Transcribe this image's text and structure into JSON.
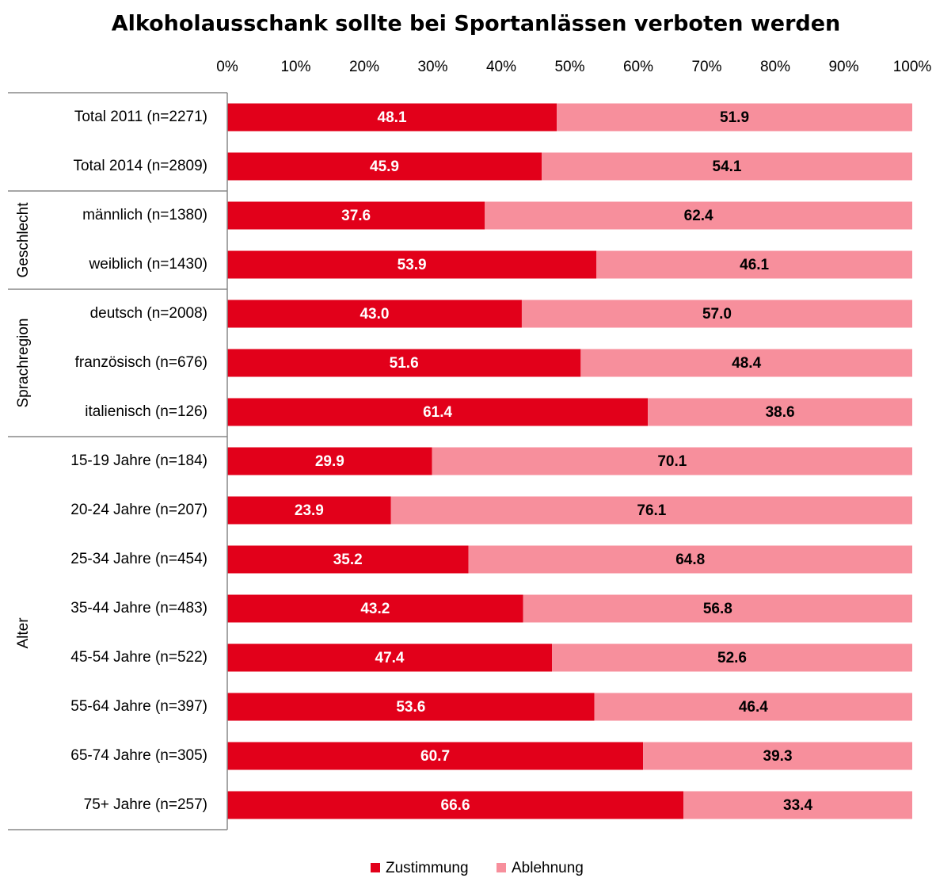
{
  "chart_data": {
    "type": "stacked_bar_horizontal",
    "title": "Alkoholausschank sollte bei Sportanlässen verboten werden",
    "categories": [
      "Total 2011 (n=2271)",
      "Total 2014 (n=2809)",
      "männlich (n=1380)",
      "weiblich (n=1430)",
      "deutsch (n=2008)",
      "französisch (n=676)",
      "italienisch (n=126)",
      "15-19 Jahre (n=184)",
      "20-24  Jahre (n=207)",
      "25-34  Jahre (n=454)",
      "35-44  Jahre (n=483)",
      "45-54  Jahre (n=522)",
      "55-64  Jahre (n=397)",
      "65-74  Jahre (n=305)",
      "75+ Jahre (n=257)"
    ],
    "groups": [
      {
        "name": "Geschlecht",
        "first": 2,
        "last": 3
      },
      {
        "name": "Sprachregion",
        "first": 4,
        "last": 6
      },
      {
        "name": "Alter",
        "first": 7,
        "last": 14
      }
    ],
    "series": [
      {
        "name": "Zustimmung",
        "color": "#e2001a",
        "label_color": "#ffffff",
        "values": [
          48.1,
          45.9,
          37.6,
          53.9,
          43,
          51.6,
          61.4,
          29.9,
          23.9,
          35.2,
          43.2,
          47.4,
          53.6,
          60.7,
          66.6
        ],
        "value_labels": [
          "48.1",
          "45.9",
          "37.6",
          "53.9",
          "43.0",
          "51.6",
          "61.4",
          "29.9",
          "23.9",
          "35.2",
          "43.2",
          "47.4",
          "53.6",
          "60.7",
          "66.6"
        ]
      },
      {
        "name": "Ablehnung",
        "color": "#f78f9c",
        "label_color": "#000000",
        "values": [
          51.9,
          54.1,
          62.4,
          46.1,
          57,
          48.4,
          38.6,
          70.1,
          76.1,
          64.8,
          56.8,
          52.6,
          46.4,
          39.3,
          33.4
        ],
        "value_labels": [
          "51.9",
          "54.1",
          "62.4",
          "46.1",
          "57.0",
          "48.4",
          "38.6",
          "70.1",
          "76.1",
          "64.8",
          "56.8",
          "52.6",
          "46.4",
          "39.3",
          "33.4"
        ]
      }
    ],
    "xlim": [
      0,
      100
    ],
    "xticks": [
      {
        "value": 0,
        "label": "0%"
      },
      {
        "value": 10,
        "label": "10%"
      },
      {
        "value": 20,
        "label": "20%"
      },
      {
        "value": 30,
        "label": "30%"
      },
      {
        "value": 40,
        "label": "40%"
      },
      {
        "value": 50,
        "label": "50%"
      },
      {
        "value": 60,
        "label": "60%"
      },
      {
        "value": 70,
        "label": "70%"
      },
      {
        "value": 80,
        "label": "80%"
      },
      {
        "value": 90,
        "label": "90%"
      },
      {
        "value": 100,
        "label": "100%"
      }
    ],
    "legend": "bottom"
  }
}
